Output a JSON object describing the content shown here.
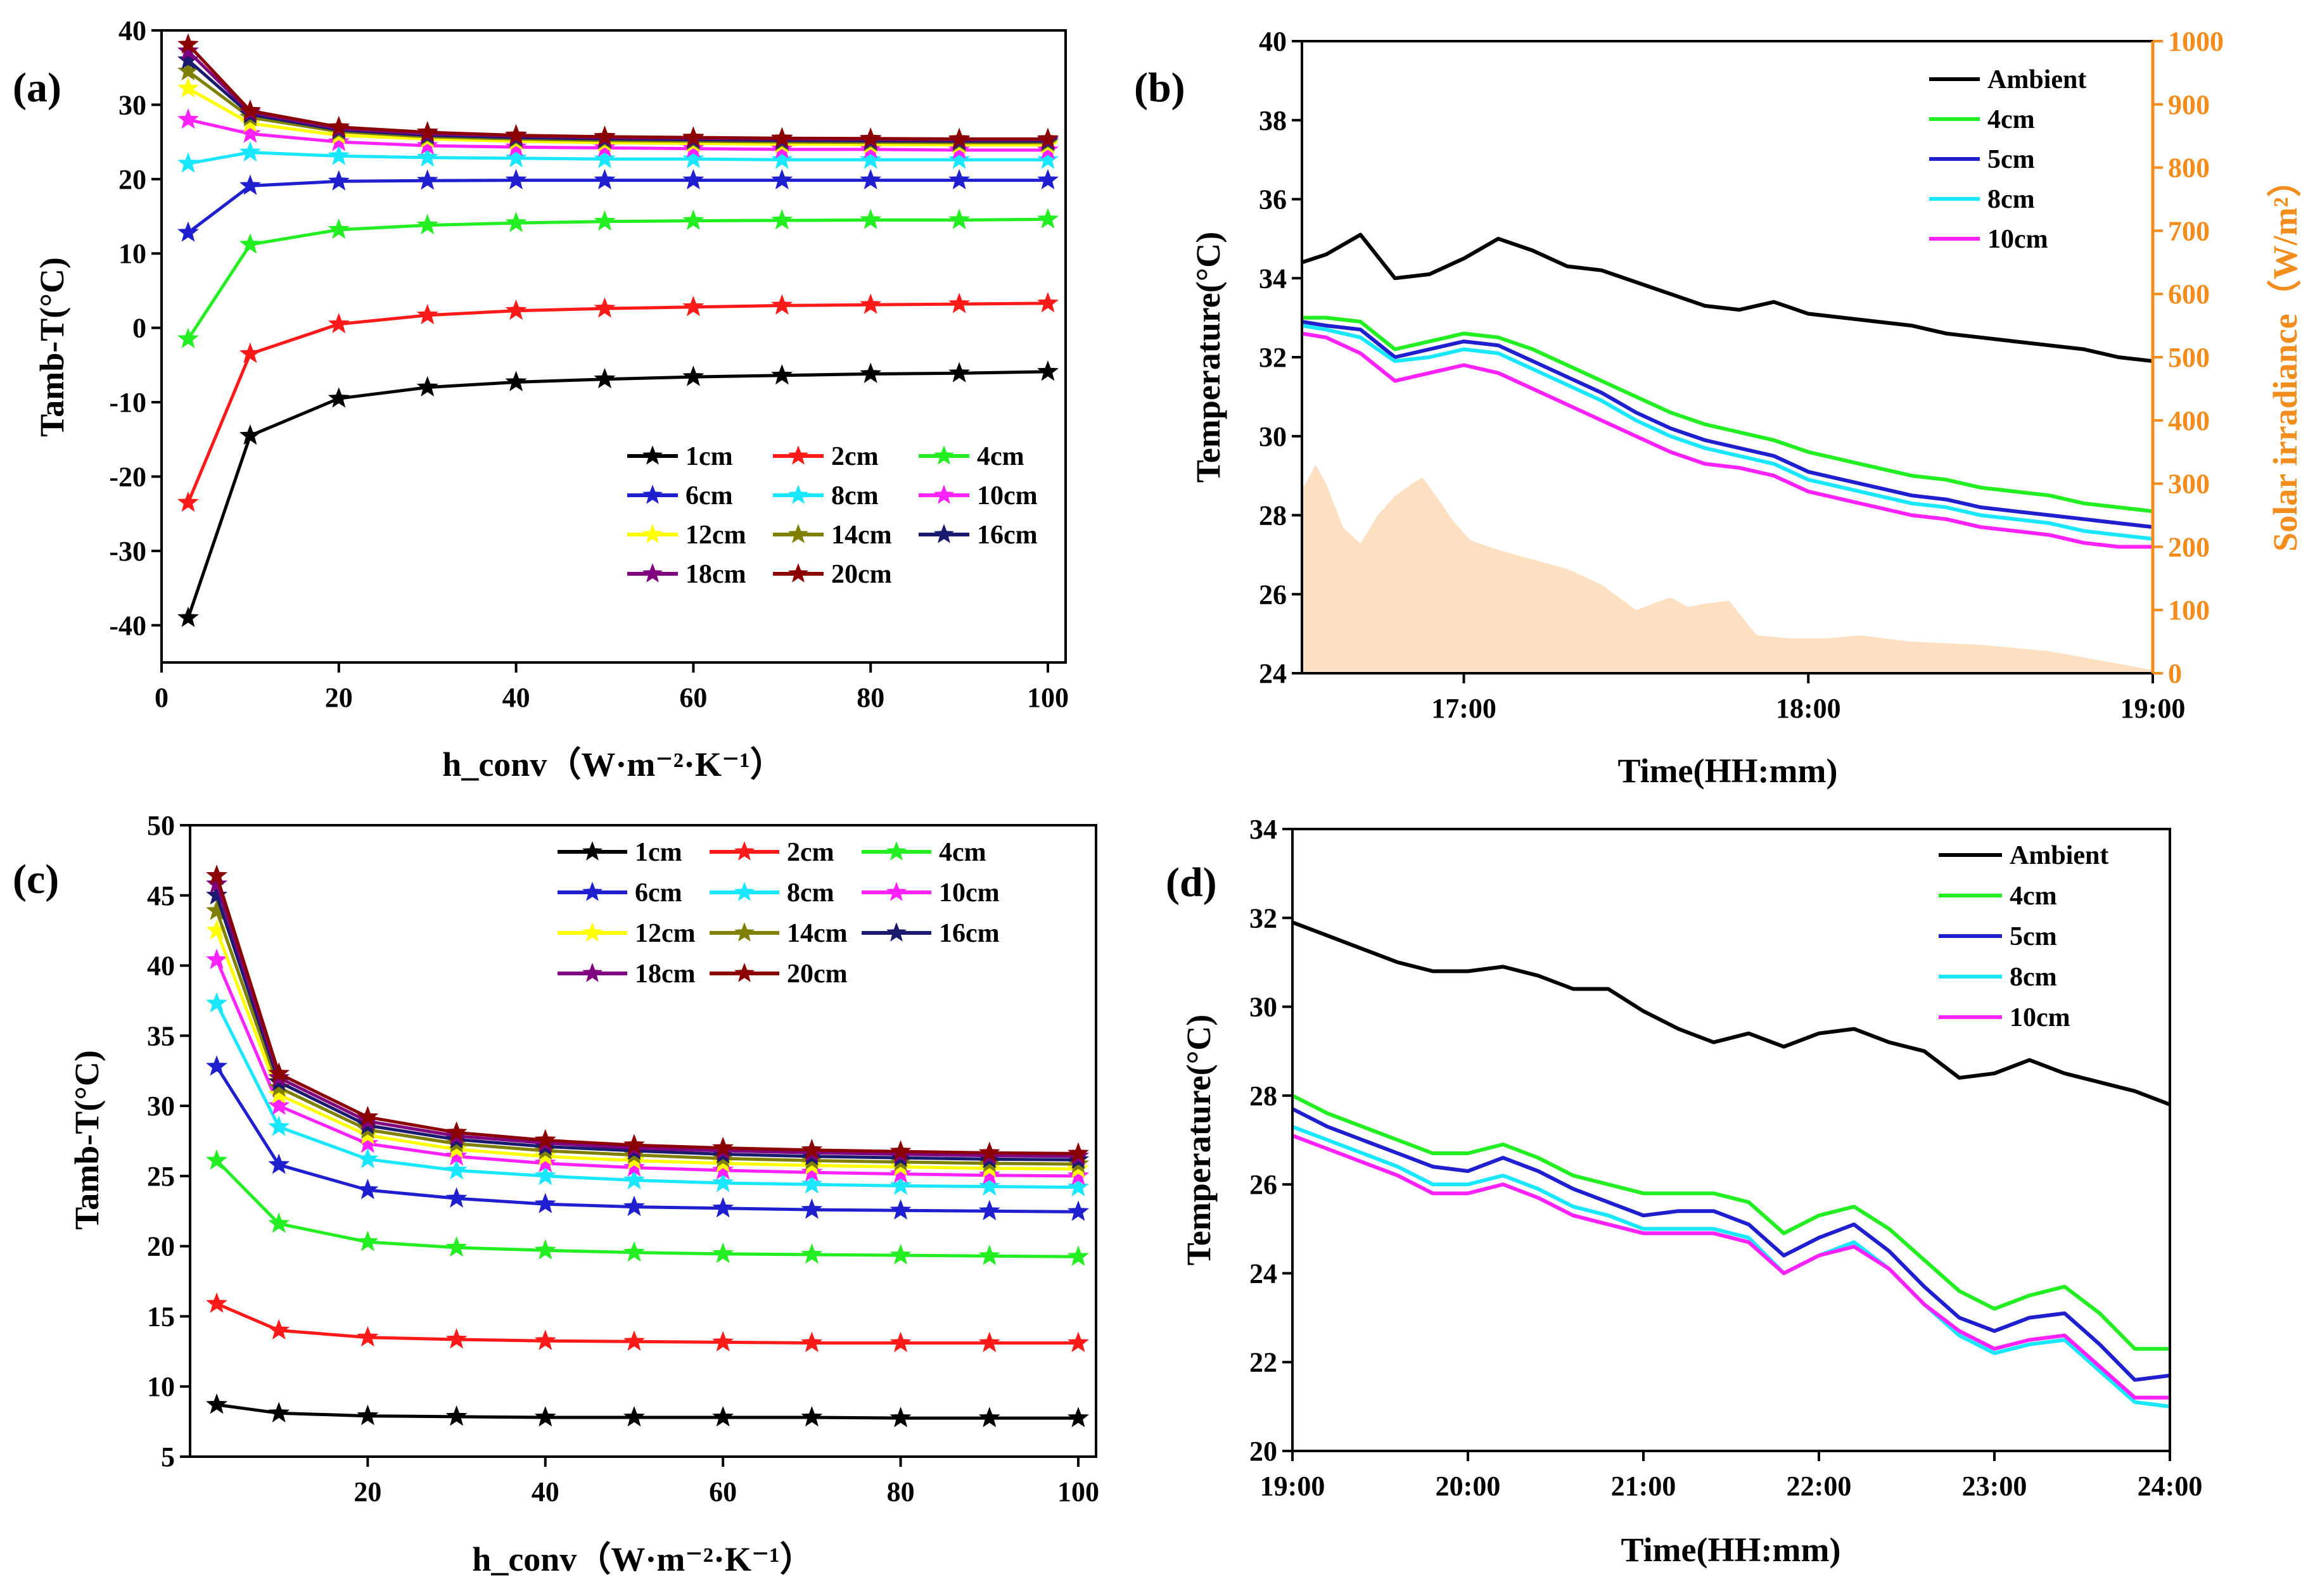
{
  "chart_data": [
    {
      "panel": "(a)",
      "type": "line",
      "xlabel": "h_conv（W·m⁻²·K⁻¹）",
      "ylabel": "Tamb-T(°C)",
      "xlim": [
        0,
        102
      ],
      "ylim": [
        -45,
        40
      ],
      "xticks": [
        0,
        20,
        40,
        60,
        80,
        100
      ],
      "yticks": [
        -40,
        -30,
        -20,
        -10,
        0,
        10,
        20,
        30,
        40
      ],
      "x": [
        3,
        10,
        20,
        30,
        40,
        50,
        60,
        70,
        80,
        90,
        100
      ],
      "legend_position": "bottom-right",
      "legend_cols": 3,
      "marker": "star",
      "series": [
        {
          "name": "1cm",
          "color": "#000000",
          "values": [
            -39,
            -14.5,
            -9.5,
            -8,
            -7.3,
            -6.9,
            -6.6,
            -6.4,
            -6.2,
            -6.1,
            -5.9
          ]
        },
        {
          "name": "2cm",
          "color": "#ff1a1a",
          "values": [
            -23.5,
            -3.5,
            0.5,
            1.7,
            2.3,
            2.6,
            2.8,
            3,
            3.1,
            3.2,
            3.3
          ]
        },
        {
          "name": "4cm",
          "color": "#22ee22",
          "values": [
            -1.5,
            11.2,
            13.2,
            13.8,
            14.1,
            14.3,
            14.4,
            14.45,
            14.5,
            14.5,
            14.6
          ]
        },
        {
          "name": "6cm",
          "color": "#1f1fd0",
          "values": [
            12.8,
            19.1,
            19.7,
            19.8,
            19.85,
            19.85,
            19.85,
            19.85,
            19.85,
            19.85,
            19.85
          ]
        },
        {
          "name": "8cm",
          "color": "#19e6ff",
          "values": [
            22.1,
            23.6,
            23.1,
            22.9,
            22.8,
            22.7,
            22.7,
            22.6,
            22.6,
            22.6,
            22.6
          ]
        },
        {
          "name": "10cm",
          "color": "#ff22ff",
          "values": [
            28,
            26.1,
            25,
            24.5,
            24.3,
            24.2,
            24.1,
            24,
            24,
            23.9,
            23.9
          ]
        },
        {
          "name": "12cm",
          "color": "#ffff00",
          "values": [
            32.2,
            27.5,
            25.9,
            25.4,
            25.1,
            24.9,
            24.8,
            24.7,
            24.65,
            24.6,
            24.6
          ]
        },
        {
          "name": "14cm",
          "color": "#808000",
          "values": [
            34.5,
            28.3,
            26.4,
            25.7,
            25.4,
            25.2,
            25.1,
            25,
            24.95,
            24.9,
            24.9
          ]
        },
        {
          "name": "16cm",
          "color": "#1a1a6e",
          "values": [
            36,
            28.7,
            26.6,
            25.9,
            25.6,
            25.4,
            25.3,
            25.2,
            25.15,
            25.1,
            25.1
          ]
        },
        {
          "name": "18cm",
          "color": "#800080",
          "values": [
            37.2,
            29,
            26.8,
            26.1,
            25.8,
            25.6,
            25.5,
            25.4,
            25.35,
            25.3,
            25.3
          ]
        },
        {
          "name": "20cm",
          "color": "#8b0000",
          "values": [
            38.1,
            29.2,
            27,
            26.3,
            25.9,
            25.7,
            25.6,
            25.5,
            25.45,
            25.4,
            25.4
          ]
        }
      ]
    },
    {
      "panel": "(b)",
      "type": "line",
      "xlabel": "Time(HH:mm)",
      "ylabel": "Temperature(°C)",
      "y2label": "Solar irradiance（W/m²）",
      "y2_color": "#f28c1c",
      "xlim": [
        16.53,
        19.0
      ],
      "ylim": [
        24,
        40
      ],
      "y2lim": [
        0,
        1000
      ],
      "xticks": [
        17,
        18,
        19
      ],
      "xticklabels": [
        "17:00",
        "18:00",
        "19:00"
      ],
      "yticks": [
        24,
        26,
        28,
        30,
        32,
        34,
        36,
        38,
        40
      ],
      "y2ticks": [
        0,
        100,
        200,
        300,
        400,
        500,
        600,
        700,
        800,
        900,
        1000
      ],
      "legend_position": "top-right",
      "x": [
        16.53,
        16.6,
        16.7,
        16.8,
        16.9,
        17.0,
        17.1,
        17.2,
        17.3,
        17.4,
        17.5,
        17.6,
        17.7,
        17.8,
        17.9,
        18.0,
        18.1,
        18.2,
        18.3,
        18.4,
        18.5,
        18.6,
        18.7,
        18.8,
        18.9,
        19.0
      ],
      "series": [
        {
          "name": "Ambient",
          "color": "#000000",
          "values": [
            34.4,
            34.6,
            35.1,
            34.0,
            34.1,
            34.5,
            35.0,
            34.7,
            34.3,
            34.2,
            33.9,
            33.6,
            33.3,
            33.2,
            33.4,
            33.1,
            33.0,
            32.9,
            32.8,
            32.6,
            32.5,
            32.4,
            32.3,
            32.2,
            32.0,
            31.9
          ]
        },
        {
          "name": "4cm",
          "color": "#22ee22",
          "values": [
            33.0,
            33.0,
            32.9,
            32.2,
            32.4,
            32.6,
            32.5,
            32.2,
            31.8,
            31.4,
            31.0,
            30.6,
            30.3,
            30.1,
            29.9,
            29.6,
            29.4,
            29.2,
            29.0,
            28.9,
            28.7,
            28.6,
            28.5,
            28.3,
            28.2,
            28.1
          ]
        },
        {
          "name": "5cm",
          "color": "#1f1fd0",
          "values": [
            32.9,
            32.8,
            32.7,
            32.0,
            32.2,
            32.4,
            32.3,
            31.9,
            31.5,
            31.1,
            30.6,
            30.2,
            29.9,
            29.7,
            29.5,
            29.1,
            28.9,
            28.7,
            28.5,
            28.4,
            28.2,
            28.1,
            28.0,
            27.9,
            27.8,
            27.7
          ]
        },
        {
          "name": "8cm",
          "color": "#19e6ff",
          "values": [
            32.8,
            32.7,
            32.5,
            31.9,
            32.0,
            32.2,
            32.1,
            31.7,
            31.3,
            30.9,
            30.4,
            30.0,
            29.7,
            29.5,
            29.3,
            28.9,
            28.7,
            28.5,
            28.3,
            28.2,
            28.0,
            27.9,
            27.8,
            27.6,
            27.5,
            27.4
          ]
        },
        {
          "name": "10cm",
          "color": "#ff22ff",
          "values": [
            32.6,
            32.5,
            32.1,
            31.4,
            31.6,
            31.8,
            31.6,
            31.2,
            30.8,
            30.4,
            30.0,
            29.6,
            29.3,
            29.2,
            29.0,
            28.6,
            28.4,
            28.2,
            28.0,
            27.9,
            27.7,
            27.6,
            27.5,
            27.3,
            27.2,
            27.2
          ]
        }
      ],
      "solar_irradiance": {
        "x": [
          16.53,
          16.57,
          16.6,
          16.65,
          16.7,
          16.75,
          16.8,
          16.85,
          16.88,
          16.92,
          16.97,
          17.02,
          17.1,
          17.2,
          17.3,
          17.4,
          17.5,
          17.6,
          17.65,
          17.7,
          17.77,
          17.85,
          17.95,
          18.05,
          18.15,
          18.3,
          18.5,
          18.7,
          18.9,
          19.0
        ],
        "values": [
          290,
          330,
          300,
          230,
          205,
          250,
          280,
          300,
          310,
          280,
          240,
          210,
          195,
          180,
          165,
          140,
          100,
          120,
          105,
          110,
          115,
          60,
          55,
          55,
          60,
          50,
          45,
          35,
          15,
          5
        ],
        "color": "#fde0c2"
      }
    },
    {
      "panel": "(c)",
      "type": "line",
      "xlabel": "h_conv（W·m⁻²·K⁻¹）",
      "ylabel": "Tamb-T(°C)",
      "xlim": [
        0,
        102
      ],
      "ylim": [
        5,
        50
      ],
      "xticks": [
        20,
        40,
        60,
        80,
        100
      ],
      "yticks": [
        5,
        10,
        15,
        20,
        25,
        30,
        35,
        40,
        45,
        50
      ],
      "x": [
        3,
        10,
        20,
        30,
        40,
        50,
        60,
        70,
        80,
        90,
        100
      ],
      "legend_position": "top-right",
      "legend_cols": 3,
      "marker": "star",
      "series": [
        {
          "name": "1cm",
          "color": "#000000",
          "values": [
            8.7,
            8.1,
            7.9,
            7.85,
            7.8,
            7.8,
            7.8,
            7.8,
            7.75,
            7.75,
            7.75
          ]
        },
        {
          "name": "2cm",
          "color": "#ff1a1a",
          "values": [
            15.9,
            14,
            13.5,
            13.35,
            13.25,
            13.2,
            13.15,
            13.1,
            13.1,
            13.1,
            13.1
          ]
        },
        {
          "name": "4cm",
          "color": "#22ee22",
          "values": [
            26.1,
            21.6,
            20.3,
            19.9,
            19.7,
            19.55,
            19.45,
            19.4,
            19.35,
            19.3,
            19.25
          ]
        },
        {
          "name": "6cm",
          "color": "#1f1fd0",
          "values": [
            32.8,
            25.8,
            24,
            23.4,
            23,
            22.8,
            22.7,
            22.6,
            22.55,
            22.5,
            22.45
          ]
        },
        {
          "name": "8cm",
          "color": "#19e6ff",
          "values": [
            37.3,
            28.5,
            26.2,
            25.4,
            25,
            24.7,
            24.5,
            24.4,
            24.3,
            24.25,
            24.2
          ]
        },
        {
          "name": "10cm",
          "color": "#ff22ff",
          "values": [
            40.4,
            30,
            27.3,
            26.4,
            25.9,
            25.6,
            25.4,
            25.25,
            25.15,
            25.05,
            25
          ]
        },
        {
          "name": "12cm",
          "color": "#ffff00",
          "values": [
            42.5,
            30.8,
            27.9,
            26.9,
            26.4,
            26.1,
            25.9,
            25.75,
            25.65,
            25.55,
            25.5
          ]
        },
        {
          "name": "14cm",
          "color": "#808000",
          "values": [
            43.9,
            31.3,
            28.3,
            27.3,
            26.8,
            26.5,
            26.25,
            26.1,
            26,
            25.9,
            25.85
          ]
        },
        {
          "name": "16cm",
          "color": "#1a1a6e",
          "values": [
            45,
            31.7,
            28.6,
            27.6,
            27.1,
            26.8,
            26.55,
            26.4,
            26.3,
            26.2,
            26.15
          ]
        },
        {
          "name": "18cm",
          "color": "#800080",
          "values": [
            45.8,
            32,
            28.9,
            27.85,
            27.35,
            27,
            26.8,
            26.65,
            26.55,
            26.45,
            26.4
          ]
        },
        {
          "name": "20cm",
          "color": "#8b0000",
          "values": [
            46.4,
            32.3,
            29.2,
            28.1,
            27.55,
            27.2,
            27,
            26.85,
            26.75,
            26.65,
            26.6
          ]
        }
      ]
    },
    {
      "panel": "(d)",
      "type": "line",
      "xlabel": "Time(HH:mm)",
      "ylabel": "Temperature(°C)",
      "xlim": [
        19,
        24
      ],
      "ylim": [
        20,
        34
      ],
      "xticks": [
        19,
        20,
        21,
        22,
        23,
        24
      ],
      "xticklabels": [
        "19:00",
        "20:00",
        "21:00",
        "22:00",
        "23:00",
        "24:00"
      ],
      "yticks": [
        20,
        22,
        24,
        26,
        28,
        30,
        32,
        34
      ],
      "legend_position": "top-right",
      "x": [
        19.0,
        19.2,
        19.4,
        19.6,
        19.8,
        20.0,
        20.2,
        20.4,
        20.6,
        20.8,
        21.0,
        21.2,
        21.4,
        21.6,
        21.8,
        22.0,
        22.2,
        22.4,
        22.6,
        22.8,
        23.0,
        23.2,
        23.4,
        23.6,
        23.8,
        24.0
      ],
      "series": [
        {
          "name": "Ambient",
          "color": "#000000",
          "values": [
            31.9,
            31.6,
            31.3,
            31.0,
            30.8,
            30.8,
            30.9,
            30.7,
            30.4,
            30.4,
            29.9,
            29.5,
            29.2,
            29.4,
            29.1,
            29.4,
            29.5,
            29.2,
            29.0,
            28.4,
            28.5,
            28.8,
            28.5,
            28.3,
            28.1,
            27.8
          ]
        },
        {
          "name": "4cm",
          "color": "#22ee22",
          "values": [
            28.0,
            27.6,
            27.3,
            27.0,
            26.7,
            26.7,
            26.9,
            26.6,
            26.2,
            26.0,
            25.8,
            25.8,
            25.8,
            25.6,
            24.9,
            25.3,
            25.5,
            25.0,
            24.3,
            23.6,
            23.2,
            23.5,
            23.7,
            23.1,
            22.3,
            22.3
          ]
        },
        {
          "name": "5cm",
          "color": "#1f1fd0",
          "values": [
            27.7,
            27.3,
            27.0,
            26.7,
            26.4,
            26.3,
            26.6,
            26.3,
            25.9,
            25.6,
            25.3,
            25.4,
            25.4,
            25.1,
            24.4,
            24.8,
            25.1,
            24.5,
            23.7,
            23.0,
            22.7,
            23.0,
            23.1,
            22.4,
            21.6,
            21.7
          ]
        },
        {
          "name": "8cm",
          "color": "#19e6ff",
          "values": [
            27.3,
            27.0,
            26.7,
            26.4,
            26.0,
            26.0,
            26.2,
            25.9,
            25.5,
            25.3,
            25.0,
            25.0,
            25.0,
            24.8,
            24.0,
            24.4,
            24.7,
            24.1,
            23.3,
            22.6,
            22.2,
            22.4,
            22.5,
            21.8,
            21.1,
            21.0
          ]
        },
        {
          "name": "10cm",
          "color": "#ff22ff",
          "values": [
            27.1,
            26.8,
            26.5,
            26.2,
            25.8,
            25.8,
            26.0,
            25.7,
            25.3,
            25.1,
            24.9,
            24.9,
            24.9,
            24.7,
            24.0,
            24.4,
            24.6,
            24.1,
            23.3,
            22.7,
            22.3,
            22.5,
            22.6,
            21.9,
            21.2,
            21.2
          ]
        }
      ]
    }
  ]
}
